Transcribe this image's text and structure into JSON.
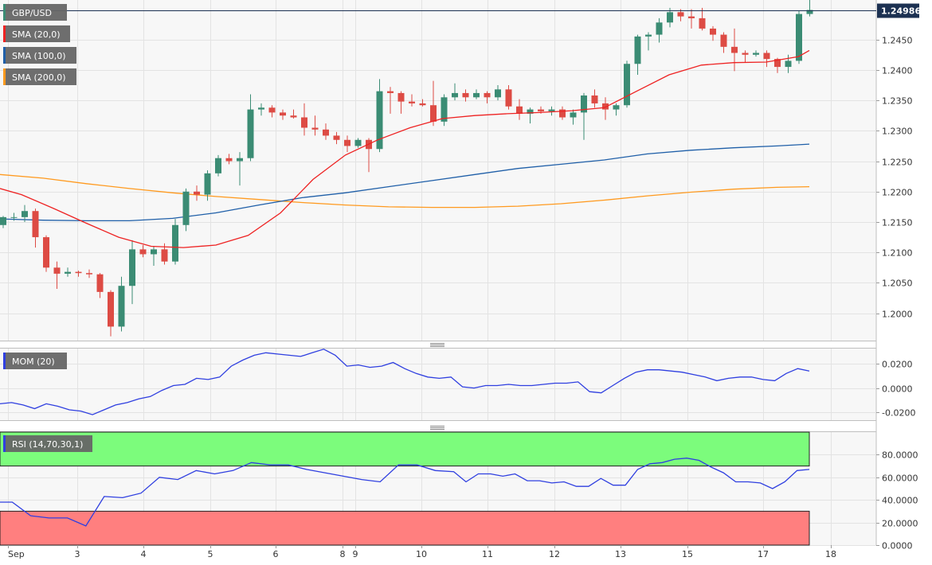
{
  "chart_data": [
    {
      "type": "candlestick",
      "symbol": "GBP/USD",
      "ylim": [
        1.1955,
        1.2515
      ],
      "y_ticks": [
        1.2,
        1.205,
        1.21,
        1.215,
        1.22,
        1.225,
        1.23,
        1.235,
        1.24,
        1.245
      ],
      "y_tick_labels": [
        "1.2000",
        "1.2050",
        "1.2100",
        "1.2150",
        "1.2200",
        "1.2250",
        "1.2300",
        "1.2350",
        "1.2400",
        "1.2450"
      ],
      "last_price": 1.24986,
      "last_price_label": "1.24986",
      "legend": [
        "GBP/USD",
        "SMA (20,0)",
        "SMA (100,0)",
        "SMA (200,0)"
      ],
      "grid": true,
      "x_labels": [
        "Sep",
        "3",
        "4",
        "5",
        "6",
        "8",
        "9",
        "10",
        "11",
        "12",
        "13",
        "15",
        "17",
        "18"
      ],
      "candles": [
        [
          1.2145,
          1.216,
          1.214,
          1.2158
        ],
        [
          1.2158,
          1.2165,
          1.2152,
          1.2158
        ],
        [
          1.2158,
          1.2178,
          1.215,
          1.2168
        ],
        [
          1.2168,
          1.2172,
          1.2108,
          1.2125
        ],
        [
          1.2125,
          1.2128,
          1.2068,
          1.2075
        ],
        [
          1.2075,
          1.2085,
          1.204,
          1.2065
        ],
        [
          1.2065,
          1.2075,
          1.206,
          1.2068
        ],
        [
          1.2068,
          1.207,
          1.206,
          1.2066
        ],
        [
          1.2066,
          1.2072,
          1.2058,
          1.2064
        ],
        [
          1.2064,
          1.2066,
          1.2025,
          1.2035
        ],
        [
          1.2035,
          1.2038,
          1.1962,
          1.1978
        ],
        [
          1.1978,
          1.206,
          1.197,
          1.2045
        ],
        [
          1.2045,
          1.212,
          1.2015,
          1.2105
        ],
        [
          1.2105,
          1.2112,
          1.2092,
          1.2097
        ],
        [
          1.2097,
          1.211,
          1.2078,
          1.2105
        ],
        [
          1.2105,
          1.2115,
          1.208,
          1.2085
        ],
        [
          1.2085,
          1.2155,
          1.208,
          1.2145
        ],
        [
          1.2145,
          1.2205,
          1.2135,
          1.22
        ],
        [
          1.22,
          1.221,
          1.2185,
          1.2195
        ],
        [
          1.2195,
          1.2235,
          1.2185,
          1.223
        ],
        [
          1.223,
          1.226,
          1.2225,
          1.2255
        ],
        [
          1.2255,
          1.2262,
          1.2245,
          1.225
        ],
        [
          1.225,
          1.2265,
          1.221,
          1.2255
        ],
        [
          1.2255,
          1.236,
          1.225,
          1.2335
        ],
        [
          1.2335,
          1.2345,
          1.2325,
          1.2338
        ],
        [
          1.2338,
          1.2342,
          1.2322,
          1.233
        ],
        [
          1.233,
          1.2335,
          1.2318,
          1.2325
        ],
        [
          1.2325,
          1.2335,
          1.232,
          1.2322
        ],
        [
          1.2322,
          1.2345,
          1.2292,
          1.2305
        ],
        [
          1.2305,
          1.2325,
          1.2292,
          1.2302
        ],
        [
          1.2302,
          1.2312,
          1.2285,
          1.2292
        ],
        [
          1.2292,
          1.2298,
          1.2278,
          1.2285
        ],
        [
          1.2285,
          1.2292,
          1.2265,
          1.2275
        ],
        [
          1.2275,
          1.2288,
          1.2272,
          1.2285
        ],
        [
          1.2285,
          1.2288,
          1.2232,
          1.227
        ],
        [
          1.227,
          1.2385,
          1.2265,
          1.2365
        ],
        [
          1.2365,
          1.2372,
          1.2328,
          1.2362
        ],
        [
          1.2362,
          1.2365,
          1.2328,
          1.2348
        ],
        [
          1.2348,
          1.236,
          1.234,
          1.2345
        ],
        [
          1.2345,
          1.2352,
          1.234,
          1.2342
        ],
        [
          1.2342,
          1.2382,
          1.2308,
          1.2315
        ],
        [
          1.2315,
          1.236,
          1.2308,
          1.2355
        ],
        [
          1.2355,
          1.2378,
          1.235,
          1.2362
        ],
        [
          1.2362,
          1.2368,
          1.2348,
          1.2355
        ],
        [
          1.2355,
          1.2368,
          1.2352,
          1.2362
        ],
        [
          1.2362,
          1.2365,
          1.2345,
          1.2355
        ],
        [
          1.2355,
          1.2375,
          1.235,
          1.2368
        ],
        [
          1.2368,
          1.2375,
          1.2335,
          1.234
        ],
        [
          1.234,
          1.2352,
          1.2318,
          1.2328
        ],
        [
          1.2328,
          1.2338,
          1.2312,
          1.2335
        ],
        [
          1.2335,
          1.234,
          1.2328,
          1.2332
        ],
        [
          1.2332,
          1.234,
          1.2325,
          1.2335
        ],
        [
          1.2335,
          1.234,
          1.2318,
          1.2322
        ],
        [
          1.2322,
          1.2335,
          1.231,
          1.233
        ],
        [
          1.233,
          1.2362,
          1.2285,
          1.2358
        ],
        [
          1.2358,
          1.2368,
          1.2338,
          1.2345
        ],
        [
          1.2345,
          1.2355,
          1.2318,
          1.2335
        ],
        [
          1.2335,
          1.2345,
          1.2325,
          1.2342
        ],
        [
          1.2342,
          1.2415,
          1.2338,
          1.241
        ],
        [
          1.241,
          1.2458,
          1.2392,
          1.2455
        ],
        [
          1.2455,
          1.2462,
          1.2432,
          1.2458
        ],
        [
          1.2458,
          1.2485,
          1.2445,
          1.2478
        ],
        [
          1.2478,
          1.2502,
          1.247,
          1.2495
        ],
        [
          1.2495,
          1.25,
          1.248,
          1.2488
        ],
        [
          1.2488,
          1.25,
          1.2468,
          1.2485
        ],
        [
          1.2485,
          1.2502,
          1.2465,
          1.2468
        ],
        [
          1.2468,
          1.2472,
          1.2448,
          1.2458
        ],
        [
          1.2458,
          1.2462,
          1.2428,
          1.2438
        ],
        [
          1.2438,
          1.2468,
          1.2398,
          1.2428
        ],
        [
          1.2428,
          1.2432,
          1.2412,
          1.2425
        ],
        [
          1.2425,
          1.2432,
          1.2422,
          1.2428
        ],
        [
          1.2428,
          1.2432,
          1.2405,
          1.2418
        ],
        [
          1.2418,
          1.242,
          1.2395,
          1.2405
        ],
        [
          1.2405,
          1.2425,
          1.2395,
          1.2415
        ],
        [
          1.2415,
          1.2498,
          1.241,
          1.2492
        ],
        [
          1.2492,
          1.2518,
          1.2488,
          1.24986
        ]
      ],
      "sma20": [
        [
          0,
          1.2205
        ],
        [
          2,
          1.2195
        ],
        [
          5,
          1.2172
        ],
        [
          8,
          1.2148
        ],
        [
          11,
          1.2125
        ],
        [
          14,
          1.211
        ],
        [
          17,
          1.2108
        ],
        [
          20,
          1.2112
        ],
        [
          23,
          1.2128
        ],
        [
          26,
          1.2165
        ],
        [
          29,
          1.222
        ],
        [
          32,
          1.226
        ],
        [
          35,
          1.2285
        ],
        [
          38,
          1.2305
        ],
        [
          41,
          1.232
        ],
        [
          44,
          1.2325
        ],
        [
          47,
          1.2328
        ],
        [
          50,
          1.233
        ],
        [
          53,
          1.2333
        ],
        [
          56,
          1.2338
        ],
        [
          59,
          1.2365
        ],
        [
          62,
          1.2392
        ],
        [
          65,
          1.2408
        ],
        [
          68,
          1.2412
        ],
        [
          71,
          1.2413
        ],
        [
          74,
          1.2422
        ],
        [
          75,
          1.2432
        ]
      ],
      "sma100": [
        [
          0,
          1.2155
        ],
        [
          4,
          1.2153
        ],
        [
          8,
          1.2152
        ],
        [
          12,
          1.2152
        ],
        [
          16,
          1.2156
        ],
        [
          20,
          1.2165
        ],
        [
          24,
          1.2178
        ],
        [
          28,
          1.219
        ],
        [
          32,
          1.2198
        ],
        [
          36,
          1.2208
        ],
        [
          40,
          1.2218
        ],
        [
          44,
          1.2228
        ],
        [
          48,
          1.2238
        ],
        [
          52,
          1.2245
        ],
        [
          56,
          1.2252
        ],
        [
          60,
          1.2262
        ],
        [
          64,
          1.2268
        ],
        [
          68,
          1.2272
        ],
        [
          72,
          1.2275
        ],
        [
          75,
          1.2278
        ]
      ],
      "sma200": [
        [
          0,
          1.2228
        ],
        [
          4,
          1.2222
        ],
        [
          8,
          1.2213
        ],
        [
          12,
          1.2205
        ],
        [
          16,
          1.2198
        ],
        [
          20,
          1.2192
        ],
        [
          24,
          1.2187
        ],
        [
          28,
          1.2182
        ],
        [
          32,
          1.2178
        ],
        [
          36,
          1.2175
        ],
        [
          40,
          1.2174
        ],
        [
          44,
          1.2174
        ],
        [
          48,
          1.2176
        ],
        [
          52,
          1.218
        ],
        [
          56,
          1.2186
        ],
        [
          60,
          1.2193
        ],
        [
          64,
          1.2199
        ],
        [
          68,
          1.2204
        ],
        [
          72,
          1.2207
        ],
        [
          75,
          1.2208
        ]
      ]
    },
    {
      "type": "line",
      "legend": [
        "MOM (20)"
      ],
      "ylim": [
        -0.0265,
        0.0325
      ],
      "y_ticks": [
        -0.02,
        0.0,
        0.02
      ],
      "y_tick_labels": [
        "-0.0200",
        "0.0000",
        "0.0200"
      ],
      "grid": true,
      "values": [
        [
          0,
          -0.013
        ],
        [
          2,
          -0.012
        ],
        [
          4,
          -0.014
        ],
        [
          6,
          -0.017
        ],
        [
          8,
          -0.013
        ],
        [
          10,
          -0.015
        ],
        [
          12,
          -0.018
        ],
        [
          14,
          -0.019
        ],
        [
          16,
          -0.022
        ],
        [
          18,
          -0.018
        ],
        [
          20,
          -0.014
        ],
        [
          22,
          -0.012
        ],
        [
          24,
          -0.009
        ],
        [
          26,
          -0.007
        ],
        [
          28,
          -0.002
        ],
        [
          30,
          0.002
        ],
        [
          32,
          0.003
        ],
        [
          34,
          0.008
        ],
        [
          36,
          0.007
        ],
        [
          38,
          0.009
        ],
        [
          40,
          0.018
        ],
        [
          42,
          0.023
        ],
        [
          44,
          0.027
        ],
        [
          46,
          0.029
        ],
        [
          48,
          0.028
        ],
        [
          50,
          0.027
        ],
        [
          52,
          0.026
        ],
        [
          54,
          0.029
        ],
        [
          56,
          0.032
        ],
        [
          58,
          0.027
        ],
        [
          60,
          0.018
        ],
        [
          62,
          0.019
        ],
        [
          64,
          0.017
        ],
        [
          66,
          0.018
        ],
        [
          68,
          0.021
        ],
        [
          70,
          0.016
        ],
        [
          72,
          0.012
        ],
        [
          74,
          0.009
        ],
        [
          76,
          0.008
        ],
        [
          78,
          0.009
        ],
        [
          80,
          0.001
        ],
        [
          82,
          0.0
        ],
        [
          84,
          0.002
        ],
        [
          86,
          0.002
        ],
        [
          88,
          0.003
        ],
        [
          90,
          0.002
        ],
        [
          92,
          0.002
        ],
        [
          94,
          0.003
        ],
        [
          96,
          0.004
        ],
        [
          98,
          0.004
        ],
        [
          100,
          0.005
        ],
        [
          102,
          -0.003
        ],
        [
          104,
          -0.004
        ],
        [
          106,
          0.002
        ],
        [
          108,
          0.008
        ],
        [
          110,
          0.013
        ],
        [
          112,
          0.015
        ],
        [
          114,
          0.015
        ],
        [
          116,
          0.014
        ],
        [
          118,
          0.013
        ],
        [
          120,
          0.011
        ],
        [
          122,
          0.009
        ],
        [
          124,
          0.006
        ],
        [
          126,
          0.008
        ],
        [
          128,
          0.009
        ],
        [
          130,
          0.009
        ],
        [
          132,
          0.007
        ],
        [
          134,
          0.006
        ],
        [
          136,
          0.012
        ],
        [
          138,
          0.016
        ],
        [
          140,
          0.014
        ]
      ]
    },
    {
      "type": "line",
      "legend": [
        "RSI (14,70,30,1)"
      ],
      "ylim": [
        0,
        100
      ],
      "y_ticks": [
        0,
        20,
        40,
        60,
        80
      ],
      "y_tick_labels": [
        "0.0000",
        "20.0000",
        "40.0000",
        "60.0000",
        "80.0000"
      ],
      "overbought": 70,
      "oversold": 30,
      "grid": true,
      "values": [
        [
          0,
          38
        ],
        [
          2,
          38
        ],
        [
          5,
          26
        ],
        [
          8,
          24
        ],
        [
          11,
          24
        ],
        [
          14,
          17
        ],
        [
          17,
          43
        ],
        [
          20,
          42
        ],
        [
          23,
          46
        ],
        [
          26,
          60
        ],
        [
          29,
          58
        ],
        [
          32,
          66
        ],
        [
          35,
          63
        ],
        [
          38,
          66
        ],
        [
          41,
          73
        ],
        [
          44,
          71
        ],
        [
          47,
          71
        ],
        [
          50,
          67
        ],
        [
          53,
          64
        ],
        [
          56,
          61
        ],
        [
          59,
          58
        ],
        [
          62,
          56
        ],
        [
          65,
          71
        ],
        [
          68,
          71
        ],
        [
          71,
          66
        ],
        [
          74,
          65
        ],
        [
          76,
          56
        ],
        [
          78,
          63
        ],
        [
          80,
          63
        ],
        [
          82,
          61
        ],
        [
          84,
          63
        ],
        [
          86,
          57
        ],
        [
          88,
          57
        ],
        [
          90,
          55
        ],
        [
          92,
          56
        ],
        [
          94,
          52
        ],
        [
          96,
          52
        ],
        [
          98,
          59
        ],
        [
          100,
          53
        ],
        [
          102,
          53
        ],
        [
          104,
          67
        ],
        [
          106,
          72
        ],
        [
          108,
          73
        ],
        [
          110,
          76
        ],
        [
          112,
          77
        ],
        [
          114,
          75
        ],
        [
          116,
          69
        ],
        [
          118,
          64
        ],
        [
          120,
          56
        ],
        [
          122,
          56
        ],
        [
          124,
          55
        ],
        [
          126,
          50
        ],
        [
          128,
          56
        ],
        [
          130,
          66
        ],
        [
          132,
          67
        ]
      ]
    }
  ]
}
